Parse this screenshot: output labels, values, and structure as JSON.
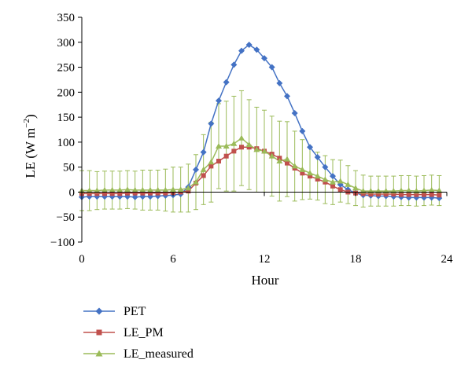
{
  "chart_data": {
    "type": "line",
    "xlabel": "Hour",
    "ylabel": "LE (W m",
    "ylabel_sup": "−2",
    "ylabel_close": ")",
    "xlim": [
      0,
      24
    ],
    "ylim": [
      -100,
      350
    ],
    "x_ticks": [
      "0",
      "6",
      "12",
      "18",
      "24"
    ],
    "y_ticks": [
      "−100",
      "−50",
      "0",
      "50",
      "100",
      "150",
      "200",
      "250",
      "300",
      "350"
    ],
    "grid": false,
    "legend_position": "bottom-left",
    "x": [
      0,
      0.5,
      1,
      1.5,
      2,
      2.5,
      3,
      3.5,
      4,
      4.5,
      5,
      5.5,
      6,
      6.5,
      7,
      7.5,
      8,
      8.5,
      9,
      9.5,
      10,
      10.5,
      11,
      11.5,
      12,
      12.5,
      13,
      13.5,
      14,
      14.5,
      15,
      15.5,
      16,
      16.5,
      17,
      17.5,
      18,
      18.5,
      19,
      19.5,
      20,
      20.5,
      21,
      21.5,
      22,
      22.5,
      23,
      23.5
    ],
    "series": [
      {
        "name": "PET",
        "color": "#4472C4",
        "marker": "diamond",
        "values": [
          -10,
          -9,
          -9,
          -9,
          -9,
          -9,
          -9,
          -10,
          -9,
          -9,
          -8,
          -7,
          -6,
          -4,
          10,
          45,
          80,
          137,
          183,
          220,
          255,
          283,
          295,
          285,
          268,
          250,
          218,
          192,
          158,
          122,
          90,
          70,
          50,
          32,
          15,
          5,
          -2,
          -6,
          -7,
          -8,
          -8,
          -9,
          -10,
          -11,
          -11,
          -11,
          -11,
          -12
        ]
      },
      {
        "name": "LE_PM",
        "color": "#C0504D",
        "marker": "square",
        "values": [
          -3,
          -3,
          -3,
          -3,
          -3,
          -3,
          -2,
          -2,
          -2,
          -2,
          -2,
          -2,
          -1,
          0,
          2,
          18,
          33,
          52,
          62,
          72,
          82,
          90,
          90,
          87,
          82,
          76,
          68,
          58,
          48,
          38,
          32,
          26,
          20,
          12,
          5,
          0,
          -2,
          -3,
          -4,
          -4,
          -4,
          -4,
          -5,
          -5,
          -5,
          -5,
          -5,
          -6
        ]
      },
      {
        "name": "LE_measured",
        "color": "#9BBB59",
        "marker": "triangle",
        "values": [
          3,
          3,
          3,
          4,
          4,
          4,
          5,
          4,
          4,
          4,
          4,
          4,
          5,
          5,
          8,
          20,
          45,
          60,
          92,
          92,
          97,
          108,
          95,
          85,
          82,
          72,
          62,
          66,
          52,
          45,
          38,
          32,
          25,
          20,
          22,
          15,
          8,
          2,
          2,
          2,
          2,
          2,
          3,
          3,
          2,
          3,
          4,
          3
        ],
        "error": [
          40,
          40,
          38,
          38,
          38,
          38,
          38,
          38,
          40,
          40,
          40,
          42,
          45,
          45,
          48,
          55,
          70,
          80,
          85,
          90,
          95,
          95,
          90,
          85,
          82,
          80,
          80,
          75,
          70,
          60,
          52,
          48,
          48,
          45,
          42,
          38,
          35,
          32,
          30,
          30,
          30,
          30,
          30,
          30,
          30,
          30,
          30,
          30
        ]
      }
    ]
  }
}
